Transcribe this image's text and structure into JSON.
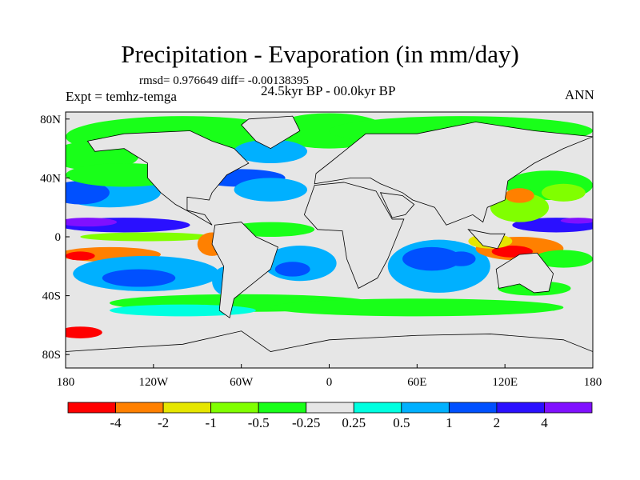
{
  "chart_data": {
    "type": "heatmap",
    "title": "Precipitation - Evaporation (in mm/day)",
    "stats": "rmsd= 0.976649 diff= -0.00138395",
    "left_label": "Expt = temhz-temga",
    "center_label": "24.5kyr BP - 00.0kyr BP",
    "right_label": "ANN",
    "x_ticks": [
      "180",
      "120W",
      "60W",
      "0",
      "60E",
      "120E",
      "180"
    ],
    "y_ticks": [
      "80N",
      "40N",
      "0",
      "40S",
      "80S"
    ],
    "colorbar": {
      "levels": [
        "-4",
        "-2",
        "-1",
        "-0.5",
        "-0.25",
        "0.25",
        "0.5",
        "1",
        "2",
        "4"
      ],
      "colors": [
        "#ff0000",
        "#ff8000",
        "#e6e600",
        "#80ff00",
        "#19ff19",
        "#e6e6e6",
        "#00ffe0",
        "#00b0ff",
        "#0050ff",
        "#2a10ff",
        "#8010ff"
      ]
    }
  }
}
